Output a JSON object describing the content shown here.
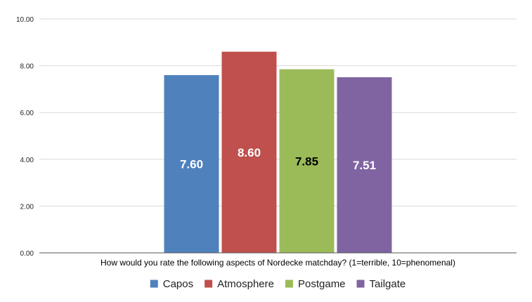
{
  "chart_data": {
    "type": "bar",
    "categories": [
      "How would you rate the following aspects of Nordecke matchday? (1=terrible, 10=phenomenal)"
    ],
    "series": [
      {
        "name": "Capos",
        "values": [
          7.6
        ],
        "color": "#4f81bd",
        "label": "7.60",
        "label_color": "#ffffff"
      },
      {
        "name": "Atmosphere",
        "values": [
          8.6
        ],
        "color": "#c0504d",
        "label": "8.60",
        "label_color": "#ffffff"
      },
      {
        "name": "Postgame",
        "values": [
          7.85
        ],
        "color": "#9bbb59",
        "label": "7.85",
        "label_color": "#000000"
      },
      {
        "name": "Tailgate",
        "values": [
          7.51
        ],
        "color": "#8064a2",
        "label": "7.51",
        "label_color": "#ffffff"
      }
    ],
    "y_ticks": [
      "0.00",
      "2.00",
      "4.00",
      "6.00",
      "8.00",
      "10.00"
    ],
    "ylim": [
      0,
      10
    ],
    "grid": true,
    "legend_position": "bottom"
  }
}
